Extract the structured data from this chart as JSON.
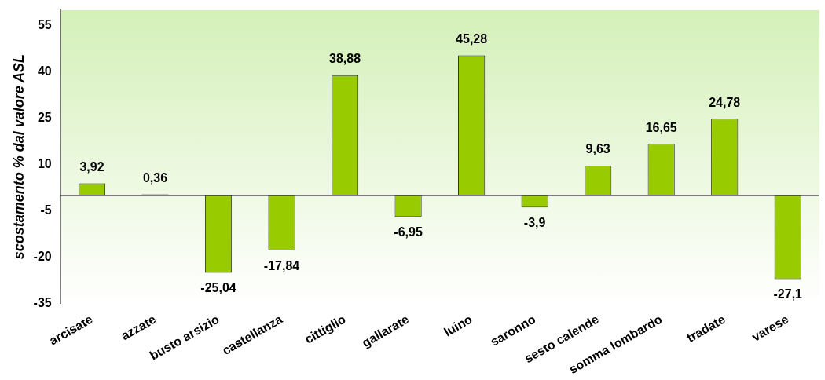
{
  "chart_data": {
    "type": "bar",
    "ylabel": "scostamento % dal valore ASL",
    "categories": [
      "arcisate",
      "azzate",
      "busto arsizio",
      "castellanza",
      "cittiglio",
      "gallarate",
      "luino",
      "saronno",
      "sesto calende",
      "somma lombardo",
      "tradate",
      "varese"
    ],
    "values": [
      3.92,
      0.36,
      -25.04,
      -17.84,
      38.88,
      -6.95,
      45.28,
      -3.9,
      9.63,
      16.65,
      24.78,
      -27.1
    ],
    "value_labels": [
      "3,92",
      "0,36",
      "-25,04",
      "-17,84",
      "38,88",
      "-6,95",
      "45,28",
      "-3,9",
      "9,63",
      "16,65",
      "24,78",
      "-27,1"
    ],
    "color": "#99cc00",
    "ylim": [
      -35,
      60
    ],
    "yticks": [
      -35,
      -20,
      -5,
      10,
      25,
      40,
      55
    ],
    "grid": false,
    "legend": false
  }
}
